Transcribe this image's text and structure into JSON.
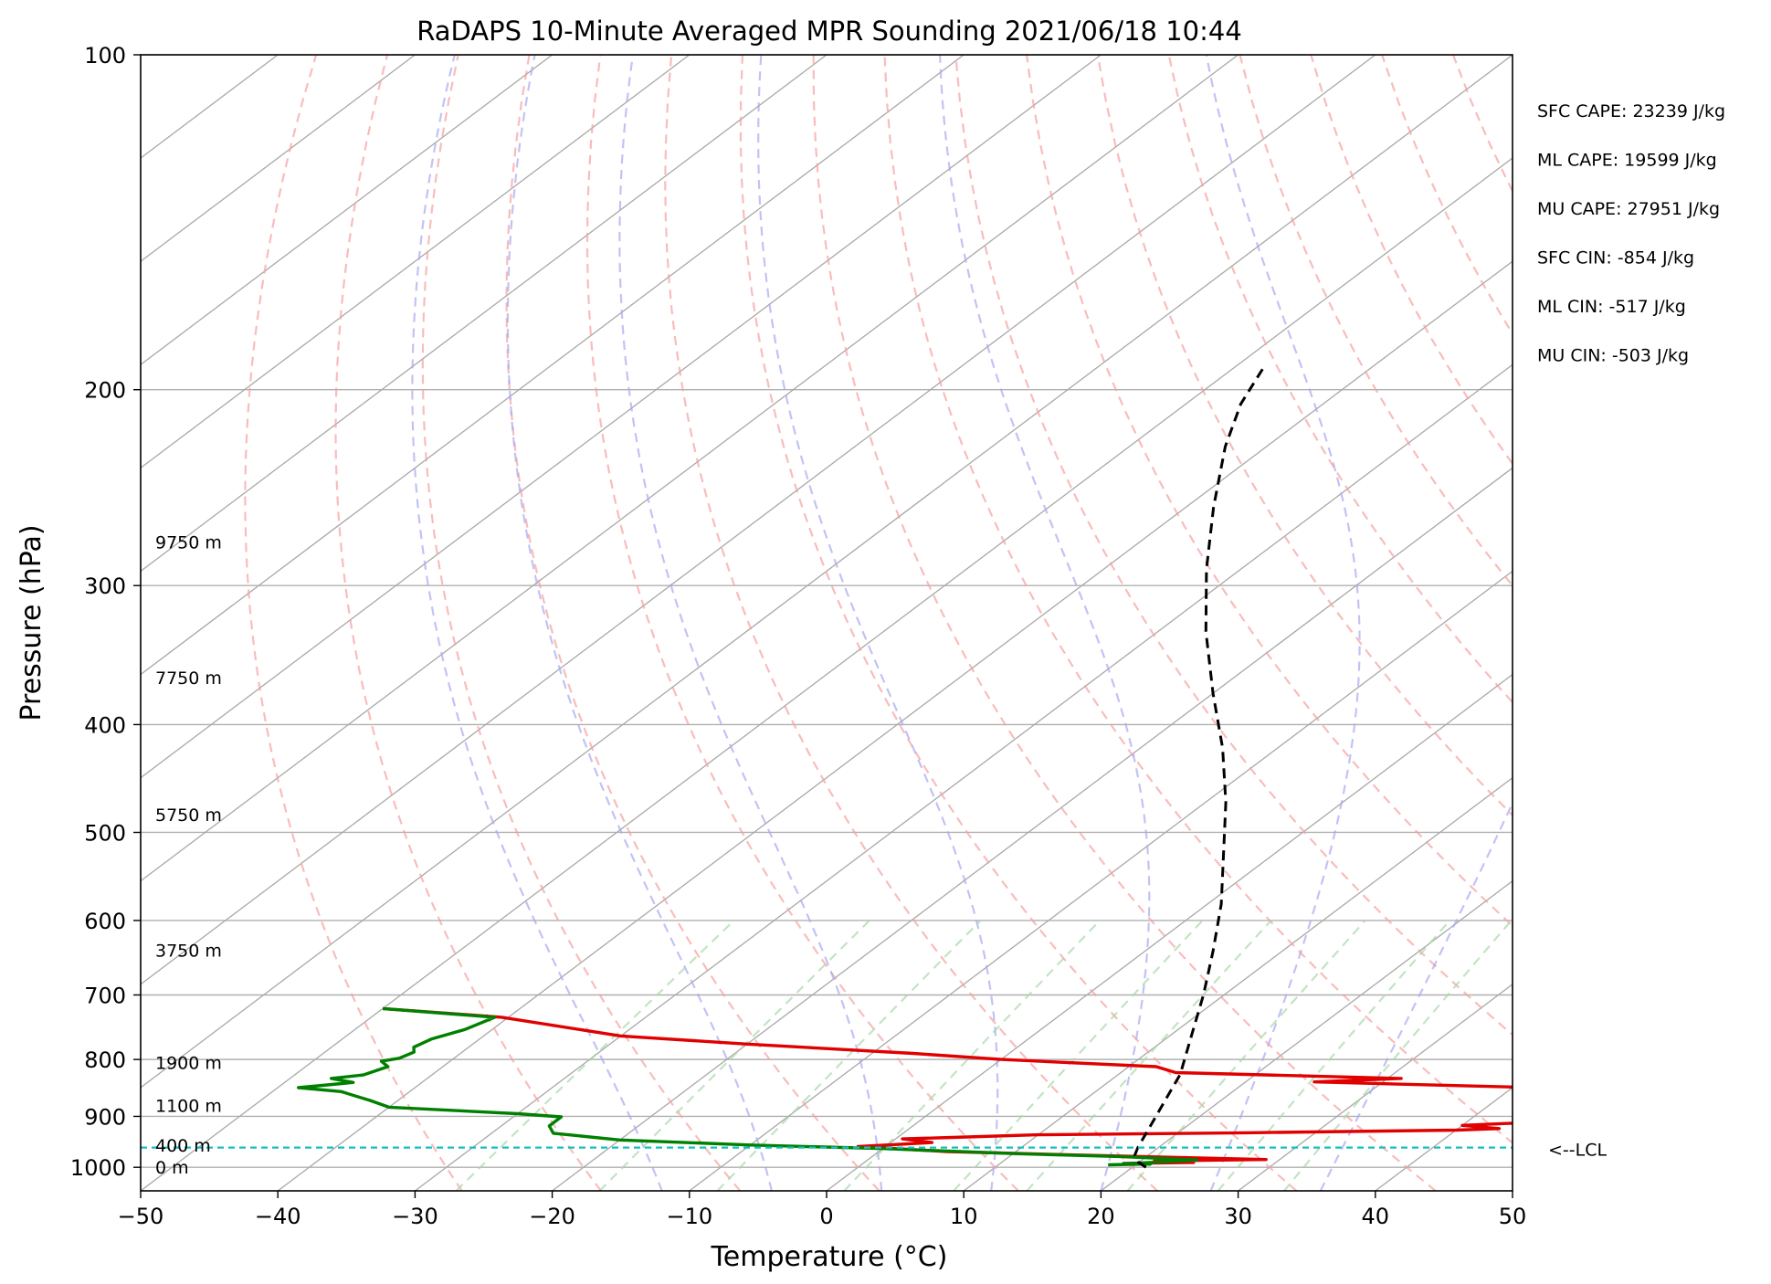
{
  "chart_data": {
    "type": "line",
    "title": "RaDAPS 10-Minute Averaged MPR Sounding 2021/06/18 10:44",
    "xlabel": "Temperature (°C)",
    "ylabel": "Pressure (hPa)",
    "xlim": [
      -50,
      50
    ],
    "ylim": [
      1050,
      100
    ],
    "y_scale": "log",
    "x_ticks": [
      -50,
      -40,
      -30,
      -20,
      -10,
      0,
      10,
      20,
      30,
      40,
      50
    ],
    "x_tick_labels": [
      "−50",
      "−40",
      "−30",
      "−20",
      "−10",
      "0",
      "10",
      "20",
      "30",
      "40",
      "50"
    ],
    "y_ticks": [
      100,
      200,
      300,
      400,
      500,
      600,
      700,
      800,
      900,
      1000
    ],
    "y_tick_labels": [
      "100",
      "200",
      "300",
      "400",
      "500",
      "600",
      "700",
      "800",
      "900",
      "1000"
    ],
    "grid": true,
    "skew_t": true,
    "background_lines": {
      "isotherms": "gray solid",
      "dry_adiabats": "red dashed",
      "moist_adiabats": "blue dashed",
      "mixing_ratio_lines": "green dashed"
    },
    "series": [
      {
        "color": "#e00000",
        "style": "solid",
        "points": [
          [
            -50,
            720
          ],
          [
            -40.5,
            733
          ],
          [
            -30,
            762
          ],
          [
            -20,
            775
          ],
          [
            -7,
            790
          ],
          [
            0,
            800
          ],
          [
            12,
            812
          ],
          [
            14,
            822
          ],
          [
            31,
            832
          ],
          [
            25,
            838
          ],
          [
            45,
            850
          ],
          [
            50,
            855
          ],
          [
            50,
            868
          ],
          [
            47,
            870
          ],
          [
            50,
            875
          ],
          [
            50,
            905
          ],
          [
            40,
            917
          ],
          [
            43,
            923
          ],
          [
            40,
            926
          ],
          [
            25,
            931
          ],
          [
            10,
            935
          ],
          [
            4,
            940
          ],
          [
            0.5,
            943
          ],
          [
            3,
            950
          ],
          [
            -2,
            958
          ],
          [
            5,
            968
          ],
          [
            15,
            975
          ],
          [
            29,
            984
          ],
          [
            21,
            987
          ],
          [
            24,
            990
          ],
          [
            19,
            992
          ],
          [
            21,
            993
          ]
        ]
      },
      {
        "color": "#008000",
        "style": "solid",
        "points": [
          [
            -50,
            720
          ],
          [
            -41,
            733
          ],
          [
            -42,
            752
          ],
          [
            -43.5,
            767
          ],
          [
            -44,
            780
          ],
          [
            -43.5,
            788
          ],
          [
            -44,
            798
          ],
          [
            -45,
            803
          ],
          [
            -44,
            812
          ],
          [
            -45,
            826
          ],
          [
            -47,
            832
          ],
          [
            -45,
            839
          ],
          [
            -48.5,
            848
          ],
          [
            -45,
            855
          ],
          [
            -42,
            871
          ],
          [
            -40,
            883
          ],
          [
            -30,
            895
          ],
          [
            -26.5,
            901
          ],
          [
            -26.5,
            918
          ],
          [
            -25.5,
            932
          ],
          [
            -20,
            945
          ],
          [
            -10,
            955
          ],
          [
            0,
            962
          ],
          [
            10,
            972
          ],
          [
            18,
            978
          ],
          [
            24,
            985
          ],
          [
            19,
            993
          ],
          [
            21,
            993
          ],
          [
            18,
            995
          ]
        ]
      },
      {
        "color": "#000000",
        "style": "dashed",
        "points": [
          [
            21,
            1000
          ],
          [
            20,
            990
          ],
          [
            19,
            975
          ],
          [
            18.5,
            960
          ],
          [
            16.5,
            890
          ],
          [
            14.5,
            825
          ],
          [
            11.5,
            760
          ],
          [
            8.5,
            700
          ],
          [
            5,
            640
          ],
          [
            1,
            580
          ],
          [
            -3.5,
            525
          ],
          [
            -8.5,
            470
          ],
          [
            -14,
            420
          ],
          [
            -20,
            375
          ],
          [
            -26.5,
            330
          ],
          [
            -32.5,
            290
          ],
          [
            -38,
            255
          ],
          [
            -43,
            225
          ],
          [
            -46,
            206
          ],
          [
            -48,
            190
          ]
        ]
      }
    ],
    "lcl_pressure": 960,
    "lcl_label": "<--LCL",
    "height_labels": [
      {
        "text": "0 m",
        "p": 1000
      },
      {
        "text": "400 m",
        "p": 955
      },
      {
        "text": "1100 m",
        "p": 880
      },
      {
        "text": "1900 m",
        "p": 805
      },
      {
        "text": "3750 m",
        "p": 638
      },
      {
        "text": "5750 m",
        "p": 482
      },
      {
        "text": "7750 m",
        "p": 363
      },
      {
        "text": "9750 m",
        "p": 274
      }
    ],
    "stats": [
      "SFC CAPE: 23239 J/kg",
      "ML CAPE: 19599 J/kg",
      "MU CAPE: 27951 J/kg",
      "SFC CIN: -854 J/kg",
      "ML CIN: -517 J/kg",
      "MU CIN: -503 J/kg"
    ]
  }
}
